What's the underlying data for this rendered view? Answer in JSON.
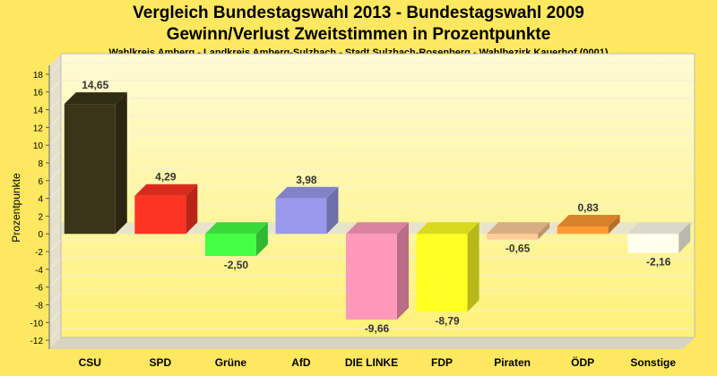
{
  "chart_data": {
    "type": "bar",
    "title": "Vergleich Bundestagswahl 2013 - Bundestagswahl 2009",
    "title_line2": "Gewinn/Verlust Zweitstimmen in Prozentpunkte",
    "subtitle": "Wahlkreis Amberg - Landkreis Amberg-Sulzbach - Stadt Sulzbach-Rosenberg - Wahlbezirk Kauerhof (0001)",
    "ylabel": "Prozentpunkte",
    "xlabel": "",
    "ylim": [
      -13,
      19
    ],
    "yticks": [
      "18",
      "16",
      "14",
      "12",
      "10",
      "8",
      "6",
      "4",
      "2",
      "0",
      "-2",
      "-4",
      "-6",
      "-8",
      "-10",
      "-12"
    ],
    "ytick_values": [
      18,
      16,
      14,
      12,
      10,
      8,
      6,
      4,
      2,
      0,
      -2,
      -4,
      -6,
      -8,
      -10,
      -12
    ],
    "grid": true,
    "categories": [
      "CSU",
      "SPD",
      "Grüne",
      "AfD",
      "DIE LINKE",
      "FDP",
      "Piraten",
      "ÖDP",
      "Sonstige"
    ],
    "values": [
      14.65,
      4.29,
      -2.5,
      3.98,
      -9.66,
      -8.79,
      -0.65,
      0.83,
      -2.16
    ],
    "value_labels": [
      "14,65",
      "4,29",
      "-2,50",
      "3,98",
      "-9,66",
      "-8,79",
      "-0,65",
      "0,83",
      "-2,16"
    ],
    "colors": [
      "#3a3519",
      "#ff3322",
      "#44ff44",
      "#9999ee",
      "#ff99bb",
      "#ffff22",
      "#ffcc99",
      "#ff9933",
      "#ffffee"
    ]
  }
}
